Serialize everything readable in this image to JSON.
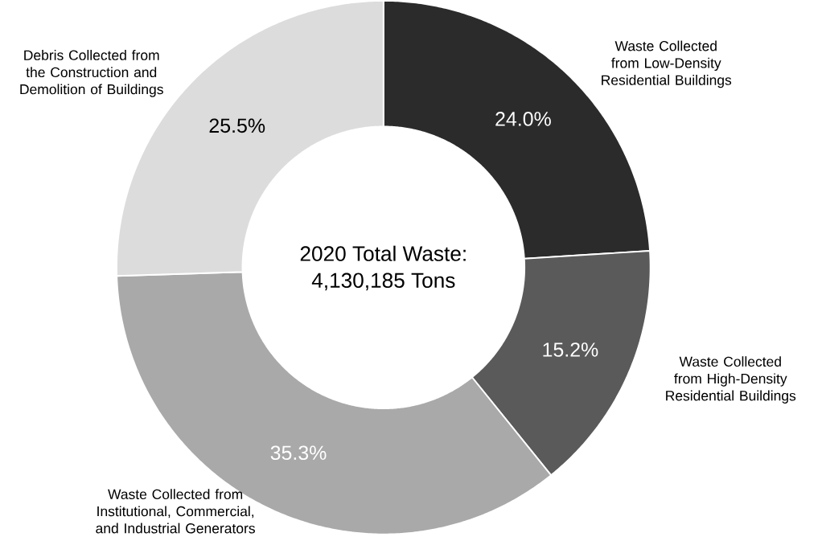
{
  "chart_data": {
    "type": "donut",
    "categories": [
      "Waste Collected from Low-Density Residential Buildings",
      "Waste Collected from High-Density Residential Buildings",
      "Waste Collected from Institutional, Commercial, and Industrial Generators",
      "Debris Collected from the Construction and Demolition of Buildings"
    ],
    "values": [
      24.0,
      15.2,
      35.3,
      25.5
    ],
    "value_labels": [
      "24.0%",
      "15.2%",
      "35.3%",
      "25.5%"
    ],
    "colors": [
      "#2b2b2b",
      "#5a5a5a",
      "#a9a9a9",
      "#dcdcdc"
    ],
    "annotations": [
      "2020 Total Waste:",
      "4,130,185 Tons"
    ]
  }
}
